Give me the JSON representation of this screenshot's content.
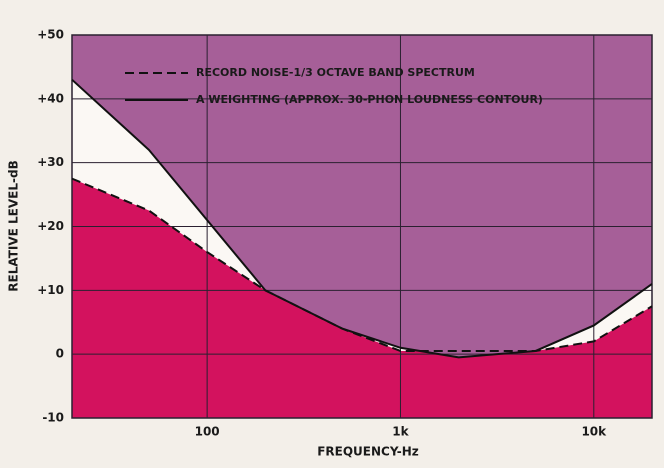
{
  "chart_data": {
    "type": "line",
    "x_label": "FREQUENCY-Hz",
    "y_label": "RELATIVE LEVEL-dB",
    "x": [
      20,
      50,
      100,
      200,
      500,
      1000,
      2000,
      5000,
      10000,
      20000
    ],
    "series": [
      {
        "name": "RECORD NOISE-1/3 OCTAVE BAND SPECTRUM",
        "color": "#111111",
        "fill": "#d3125e",
        "dash": true,
        "values": [
          27.5,
          22.5,
          16,
          10,
          4,
          0.5,
          0.5,
          0.5,
          2,
          7.5
        ]
      },
      {
        "name": "A WEIGHTING (APPROX. 30-PHON LOUDNESS CONTOUR)",
        "color": "#111111",
        "fill": "#a65f98",
        "dash": false,
        "values": [
          43,
          32,
          21,
          10,
          4,
          1,
          -0.5,
          0.5,
          4.5,
          11
        ]
      }
    ],
    "xlim": [
      20,
      20000
    ],
    "ylim": [
      -10,
      50
    ],
    "xticks": [
      100,
      {
        "value": 1000,
        "label": "1k"
      },
      {
        "value": 10000,
        "label": "10k"
      }
    ],
    "yticks": [
      -10,
      0,
      {
        "value": 10,
        "label": "+10"
      },
      {
        "value": 20,
        "label": "+20"
      },
      {
        "value": 30,
        "label": "+30"
      },
      {
        "value": 40,
        "label": "+40"
      },
      {
        "value": 50,
        "label": "+50"
      }
    ],
    "x_log": true,
    "grid": true
  }
}
